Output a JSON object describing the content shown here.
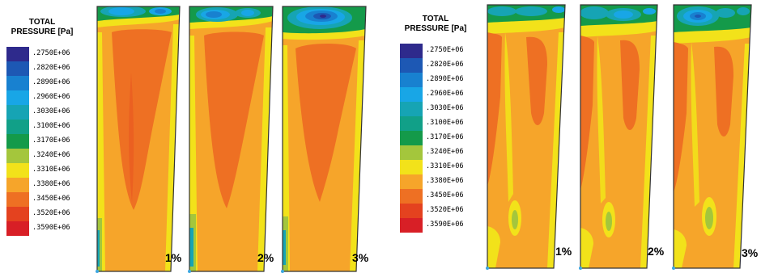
{
  "legend_left": {
    "title_line1": "TOTAL",
    "title_line2": "PRESSURE [Pa]"
  },
  "legend_right": {
    "title_line1": "TOTAL",
    "title_line2": "PRESSURE [Pa]"
  },
  "legend_levels": [
    {
      "value": ".2750E+06",
      "color": "#2e2a8c"
    },
    {
      "value": ".2820E+06",
      "color": "#1d58b4"
    },
    {
      "value": ".2890E+06",
      "color": "#1881d0"
    },
    {
      "value": ".2960E+06",
      "color": "#18a6e6"
    },
    {
      "value": ".3030E+06",
      "color": "#16a4b4"
    },
    {
      "value": ".3100E+06",
      "color": "#11a088"
    },
    {
      "value": ".3170E+06",
      "color": "#149a4a"
    },
    {
      "value": ".3240E+06",
      "color": "#a4c63c"
    },
    {
      "value": ".3310E+06",
      "color": "#f2e21a"
    },
    {
      "value": ".3380E+06",
      "color": "#f6a52a"
    },
    {
      "value": ".3450E+06",
      "color": "#ee7023"
    },
    {
      "value": ".3520E+06",
      "color": "#e4421f"
    },
    {
      "value": ".3590E+06",
      "color": "#d81f26"
    }
  ],
  "panels_left": [
    {
      "label": "1%"
    },
    {
      "label": "2%"
    },
    {
      "label": "3%"
    }
  ],
  "panels_right": [
    {
      "label": "1%"
    },
    {
      "label": "2%"
    },
    {
      "label": "3%"
    }
  ]
}
